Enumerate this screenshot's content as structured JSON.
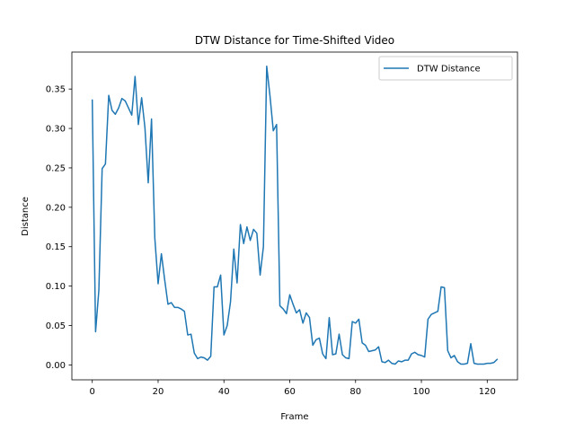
{
  "chart_data": {
    "type": "line",
    "title": "DTW Distance for Time-Shifted Video",
    "xlabel": "Frame",
    "ylabel": "Distance",
    "xlim": [
      -6.2,
      129.2
    ],
    "ylim": [
      -0.0189,
      0.3969
    ],
    "xticks": [
      0,
      20,
      40,
      60,
      80,
      100,
      120
    ],
    "yticks": [
      0.0,
      0.05,
      0.1,
      0.15,
      0.2,
      0.25,
      0.3,
      0.35
    ],
    "ytick_labels": [
      "0.00",
      "0.05",
      "0.10",
      "0.15",
      "0.20",
      "0.25",
      "0.30",
      "0.35"
    ],
    "grid": false,
    "legend": {
      "position": "top-right",
      "entries": [
        "DTW Distance"
      ]
    },
    "series": [
      {
        "name": "DTW Distance",
        "color": "#1f77b4",
        "x": [
          0,
          1,
          2,
          3,
          4,
          5,
          6,
          7,
          8,
          9,
          10,
          11,
          12,
          13,
          14,
          15,
          16,
          17,
          18,
          19,
          20,
          21,
          22,
          23,
          24,
          25,
          26,
          27,
          28,
          29,
          30,
          31,
          32,
          33,
          34,
          35,
          36,
          37,
          38,
          39,
          40,
          41,
          42,
          43,
          44,
          45,
          46,
          47,
          48,
          49,
          50,
          51,
          52,
          53,
          54,
          55,
          56,
          57,
          58,
          59,
          60,
          61,
          62,
          63,
          64,
          65,
          66,
          67,
          68,
          69,
          70,
          71,
          72,
          73,
          74,
          75,
          76,
          77,
          78,
          79,
          80,
          81,
          82,
          83,
          84,
          85,
          86,
          87,
          88,
          89,
          90,
          91,
          92,
          93,
          94,
          95,
          96,
          97,
          98,
          99,
          100,
          101,
          102,
          103,
          104,
          105,
          106,
          107,
          108,
          109,
          110,
          111,
          112,
          113,
          114,
          115,
          116,
          117,
          118,
          119,
          120,
          121,
          122,
          123
        ],
        "values": [
          0.336,
          0.042,
          0.095,
          0.249,
          0.255,
          0.342,
          0.323,
          0.318,
          0.326,
          0.338,
          0.335,
          0.326,
          0.317,
          0.366,
          0.305,
          0.339,
          0.301,
          0.231,
          0.312,
          0.161,
          0.103,
          0.141,
          0.108,
          0.077,
          0.079,
          0.073,
          0.073,
          0.071,
          0.068,
          0.038,
          0.039,
          0.015,
          0.008,
          0.01,
          0.009,
          0.006,
          0.011,
          0.099,
          0.099,
          0.114,
          0.038,
          0.05,
          0.08,
          0.147,
          0.104,
          0.178,
          0.154,
          0.175,
          0.158,
          0.172,
          0.167,
          0.114,
          0.15,
          0.379,
          0.341,
          0.297,
          0.305,
          0.075,
          0.071,
          0.065,
          0.089,
          0.077,
          0.066,
          0.07,
          0.053,
          0.066,
          0.06,
          0.025,
          0.032,
          0.034,
          0.014,
          0.008,
          0.06,
          0.013,
          0.014,
          0.039,
          0.013,
          0.009,
          0.008,
          0.055,
          0.053,
          0.058,
          0.028,
          0.025,
          0.017,
          0.018,
          0.019,
          0.023,
          0.004,
          0.003,
          0.006,
          0.002,
          0.001,
          0.005,
          0.004,
          0.006,
          0.006,
          0.014,
          0.016,
          0.013,
          0.012,
          0.01,
          0.058,
          0.064,
          0.066,
          0.068,
          0.099,
          0.098,
          0.018,
          0.009,
          0.012,
          0.004,
          0.001,
          0.001,
          0.002,
          0.027,
          0.002,
          0.001,
          0.001,
          0.001,
          0.002,
          0.002,
          0.003,
          0.007
        ]
      }
    ]
  }
}
